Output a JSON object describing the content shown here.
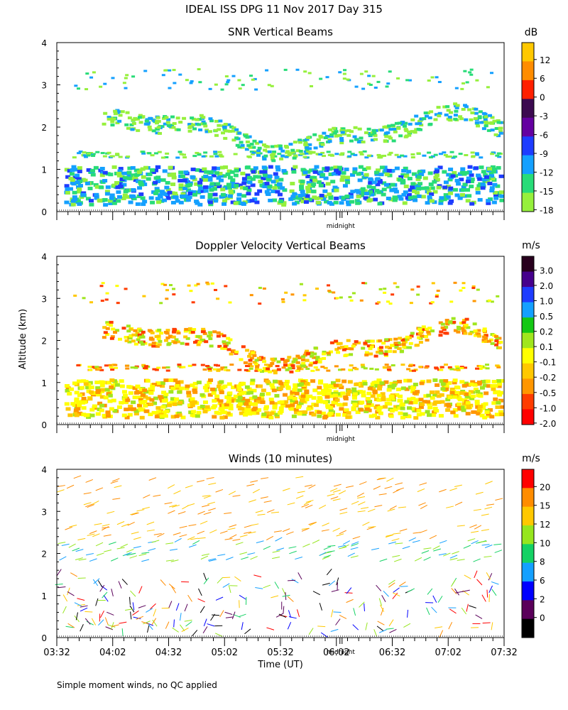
{
  "main_title": "IDEAL ISS DPG  11 Nov 2017 Day 315",
  "footnote": "Simple moment winds, no QC applied",
  "midnight_label": "midnight",
  "chart_data": [
    {
      "type": "heatmap",
      "title": "SNR Vertical Beams",
      "colorbar_unit": "dB",
      "colorbar_ticks": [
        "12",
        "6",
        "0",
        "-3",
        "-6",
        "-9",
        "-12",
        "-15",
        "-18"
      ],
      "colorbar_colors": [
        "#ffc800",
        "#ff8c00",
        "#ff2000",
        "#3c0a50",
        "#6400a0",
        "#1e3cff",
        "#14a0ff",
        "#28dc78",
        "#96f03c"
      ],
      "yticks": [
        "0",
        "1",
        "2",
        "3",
        "4"
      ],
      "ylim": [
        0,
        4
      ],
      "grid": false
    },
    {
      "type": "heatmap",
      "title": "Doppler Velocity Vertical Beams",
      "colorbar_unit": "m/s",
      "colorbar_ticks": [
        "3.0",
        "2.0",
        "1.0",
        "0.5",
        "0.2",
        "0.1",
        "-0.1",
        "-0.2",
        "-0.5",
        "-1.0",
        "-2.0"
      ],
      "colorbar_colors": [
        "#28001e",
        "#46008c",
        "#1e3cff",
        "#14a0ff",
        "#14c814",
        "#a0e61e",
        "#ffff00",
        "#ffc800",
        "#ff9600",
        "#ff3c00",
        "#ff0000"
      ],
      "yticks": [
        "0",
        "1",
        "2",
        "3",
        "4"
      ],
      "ylim": [
        0,
        4
      ],
      "grid": false
    },
    {
      "type": "scatter",
      "title": "Winds (10 minutes)",
      "xlabel": "Time (UT)",
      "ylabel": "Altitude (km)",
      "colorbar_unit": "m/s",
      "colorbar_ticks": [
        "20",
        "15",
        "12",
        "10",
        "8",
        "6",
        "2",
        "0"
      ],
      "colorbar_colors": [
        "#ff0000",
        "#ff8c00",
        "#ffc800",
        "#96e61e",
        "#14d264",
        "#14a0ff",
        "#0000ff",
        "#5a005a",
        "#000000"
      ],
      "xticks": [
        "03:32",
        "04:02",
        "04:32",
        "05:02",
        "05:32",
        "06:02",
        "06:32",
        "07:02",
        "07:32"
      ],
      "yticks": [
        "0",
        "1",
        "2",
        "3",
        "4"
      ],
      "ylim": [
        0,
        4
      ],
      "grid": false
    }
  ]
}
